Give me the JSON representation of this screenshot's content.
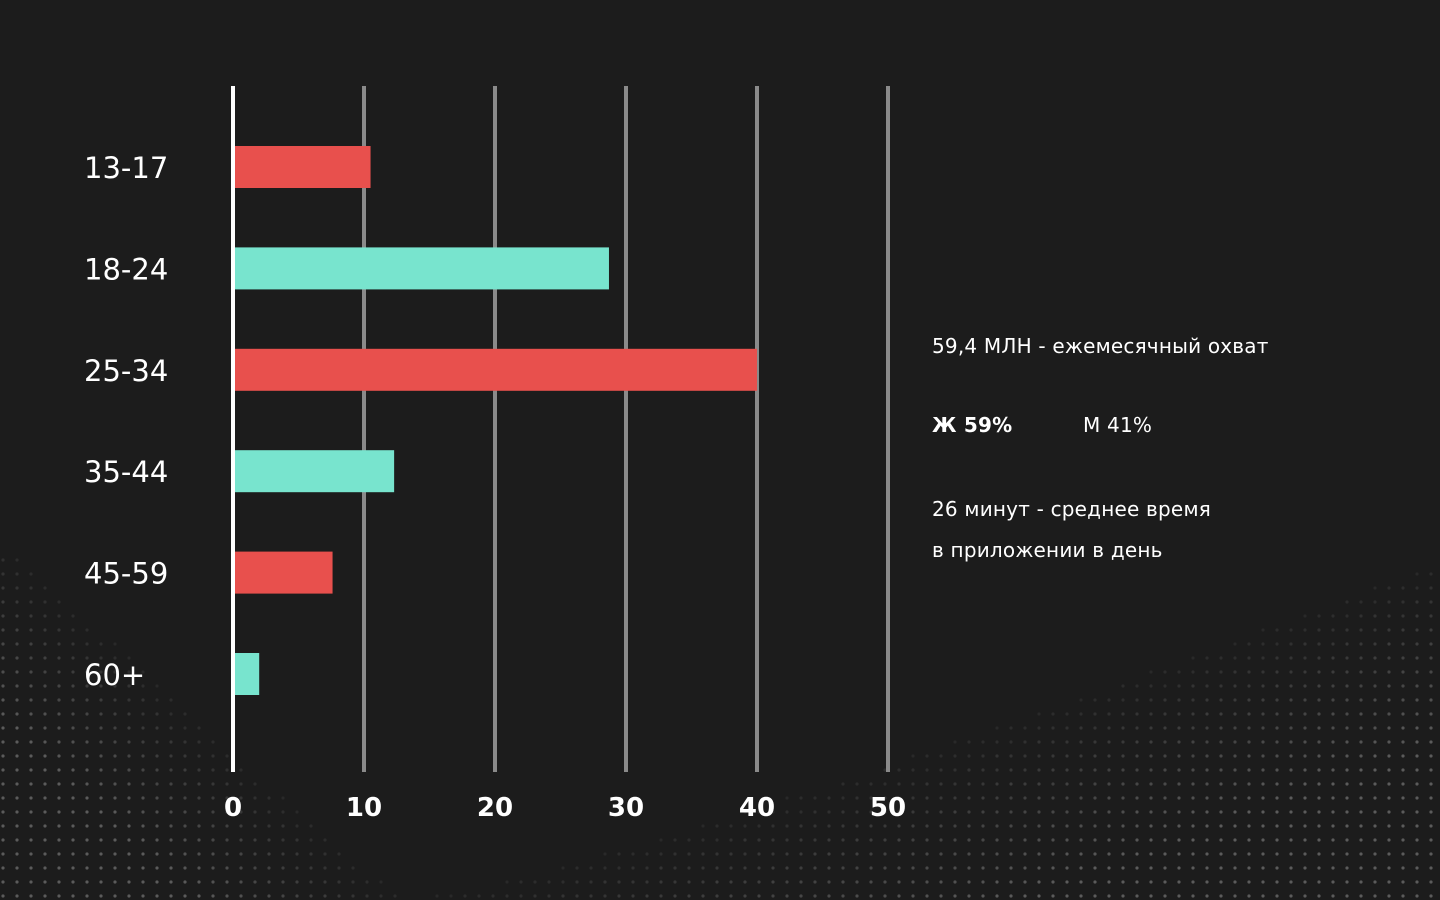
{
  "chart_data": {
    "type": "bar",
    "orientation": "horizontal",
    "categories": [
      "13-17",
      "18-24",
      "25-34",
      "35-44",
      "45-59",
      "60+"
    ],
    "values": [
      10.5,
      28.7,
      40.0,
      12.3,
      7.6,
      2.0
    ],
    "colors": [
      "#e8504d",
      "#78e4ce",
      "#e8504d",
      "#78e4ce",
      "#e8504d",
      "#78e4ce"
    ],
    "xticks": [
      0,
      10,
      20,
      30,
      40,
      50
    ],
    "xlim": [
      0,
      50
    ],
    "grid": true,
    "title": "",
    "xlabel": "",
    "ylabel": ""
  },
  "stats": {
    "reach": "59,4 МЛН - ежемесячный охват",
    "women": "Ж 59%",
    "men": "М 41%",
    "time_line1": "26 минут - среднее время",
    "time_line2": "в приложении в день"
  },
  "colors": {
    "background": "#1c1c1c",
    "grid": "#8a8a8a",
    "axis": "#ffffff",
    "red": "#e8504d",
    "teal": "#78e4ce"
  }
}
